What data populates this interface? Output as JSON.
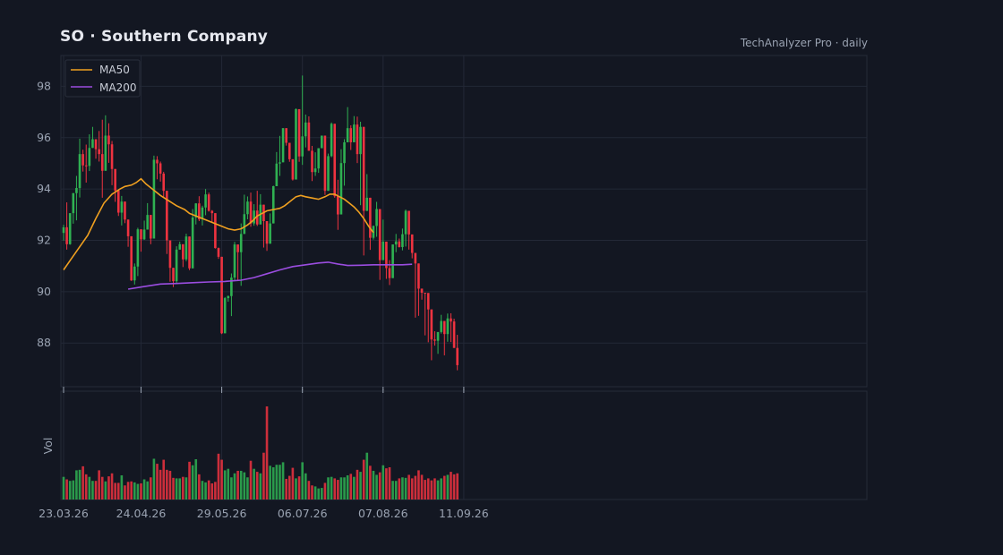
{
  "header": {
    "title": "SO  ·  Southern Company",
    "source": "TechAnalyzer Pro · daily"
  },
  "colors": {
    "background": "#131722",
    "up": "#2fb152",
    "down": "#ee3340",
    "ma50": "#f0a020",
    "ma200": "#9b4de0",
    "grid": "#232836",
    "axis_text": "#9aa3b2"
  },
  "chart_data": {
    "type": "candlestick",
    "interval": "daily",
    "ylim": [
      86.3,
      99.2
    ],
    "yticks": [
      88,
      90,
      92,
      94,
      96,
      98
    ],
    "ylabel_volume": "Vol",
    "x_tick_labels": [
      {
        "label": "23.03.26",
        "index": 0
      },
      {
        "label": "24.04.26",
        "index": 24
      },
      {
        "label": "29.05.26",
        "index": 49
      },
      {
        "label": "06.07.26",
        "index": 74
      },
      {
        "label": "07.08.26",
        "index": 99
      },
      {
        "label": "11.09.26",
        "index": 124
      }
    ],
    "legend": [
      {
        "name": "MA50",
        "color": "#f0a020"
      },
      {
        "name": "MA200",
        "color": "#9b4de0"
      }
    ],
    "ma50": [
      [
        0,
        90.85
      ],
      [
        5,
        91.3
      ],
      [
        10,
        91.75
      ],
      [
        15,
        92.2
      ],
      [
        20,
        92.85
      ],
      [
        25,
        93.45
      ],
      [
        30,
        93.8
      ],
      [
        35,
        94.0
      ],
      [
        38,
        94.1
      ],
      [
        42,
        94.15
      ],
      [
        45,
        94.25
      ],
      [
        48,
        94.4
      ],
      [
        51,
        94.2
      ],
      [
        55,
        94.0
      ],
      [
        60,
        93.75
      ],
      [
        65,
        93.55
      ],
      [
        70,
        93.35
      ],
      [
        75,
        93.2
      ],
      [
        78,
        93.05
      ],
      [
        82,
        92.95
      ],
      [
        86,
        92.85
      ],
      [
        90,
        92.75
      ],
      [
        94,
        92.65
      ],
      [
        98,
        92.55
      ],
      [
        102,
        92.45
      ],
      [
        106,
        92.4
      ],
      [
        110,
        92.45
      ],
      [
        114,
        92.6
      ],
      [
        117,
        92.75
      ],
      [
        120,
        92.95
      ],
      [
        123,
        93.05
      ],
      [
        126,
        93.15
      ],
      [
        130,
        93.2
      ],
      [
        134,
        93.25
      ],
      [
        137,
        93.35
      ],
      [
        140,
        93.5
      ],
      [
        144,
        93.7
      ],
      [
        147,
        93.75
      ],
      [
        150,
        93.7
      ],
      [
        154,
        93.65
      ],
      [
        158,
        93.6
      ],
      [
        162,
        93.7
      ],
      [
        165,
        93.8
      ],
      [
        168,
        93.8
      ],
      [
        171,
        93.7
      ],
      [
        174,
        93.6
      ],
      [
        177,
        93.45
      ],
      [
        180,
        93.3
      ],
      [
        183,
        93.1
      ],
      [
        186,
        92.85
      ],
      [
        189,
        92.55
      ],
      [
        192,
        92.3
      ]
    ],
    "ma200": [
      [
        40,
        90.1
      ],
      [
        50,
        90.2
      ],
      [
        60,
        90.3
      ],
      [
        70,
        90.32
      ],
      [
        80,
        90.35
      ],
      [
        90,
        90.38
      ],
      [
        100,
        90.4
      ],
      [
        110,
        90.45
      ],
      [
        118,
        90.55
      ],
      [
        126,
        90.7
      ],
      [
        134,
        90.85
      ],
      [
        142,
        90.98
      ],
      [
        150,
        91.05
      ],
      [
        158,
        91.12
      ],
      [
        164,
        91.15
      ],
      [
        170,
        91.08
      ],
      [
        176,
        91.02
      ],
      [
        184,
        91.03
      ],
      [
        192,
        91.05
      ],
      [
        200,
        91.05
      ],
      [
        210,
        91.05
      ],
      [
        216,
        91.07
      ]
    ],
    "candles": [
      [
        92.29,
        92.51,
        92.61,
        91.99,
        0.45
      ],
      [
        92.51,
        91.85,
        93.48,
        91.64,
        0.4
      ],
      [
        91.85,
        93.06,
        93.06,
        91.83,
        0.37
      ],
      [
        93.06,
        93.84,
        93.84,
        92.65,
        0.38
      ],
      [
        93.84,
        94.04,
        94.51,
        92.78,
        0.58
      ],
      [
        94.04,
        95.36,
        95.96,
        93.67,
        0.59
      ],
      [
        95.36,
        94.92,
        95.53,
        94.68,
        0.66
      ],
      [
        94.92,
        94.9,
        95.73,
        94.25,
        0.5
      ],
      [
        94.9,
        95.6,
        96.13,
        94.7,
        0.45
      ],
      [
        95.6,
        95.94,
        96.42,
        95.68,
        0.37
      ],
      [
        95.94,
        95.55,
        95.79,
        95.18,
        0.37
      ],
      [
        95.55,
        95.36,
        96.26,
        95.07,
        0.58
      ],
      [
        95.36,
        94.71,
        96.7,
        93.66,
        0.45
      ],
      [
        94.71,
        96.08,
        96.87,
        95.16,
        0.36
      ],
      [
        96.08,
        95.74,
        96.56,
        95.02,
        0.46
      ],
      [
        95.74,
        94.78,
        95.87,
        94.15,
        0.52
      ],
      [
        94.78,
        93.94,
        94.46,
        93.5,
        0.33
      ],
      [
        93.94,
        93.08,
        93.53,
        92.95,
        0.33
      ],
      [
        93.08,
        93.51,
        93.73,
        92.58,
        0.48
      ],
      [
        93.51,
        92.81,
        93.46,
        92.67,
        0.28
      ],
      [
        92.81,
        92.16,
        92.7,
        91.75,
        0.35
      ],
      [
        92.16,
        90.44,
        92.16,
        90.42,
        0.36
      ],
      [
        90.44,
        90.98,
        91.1,
        90.28,
        0.34
      ],
      [
        90.98,
        92.43,
        92.49,
        90.61,
        0.31
      ],
      [
        92.43,
        92.04,
        92.39,
        91.56,
        0.32
      ],
      [
        92.04,
        92.42,
        92.77,
        92.02,
        0.4
      ],
      [
        92.42,
        92.99,
        93.45,
        92.81,
        0.36
      ],
      [
        92.99,
        92.07,
        92.97,
        91.85,
        0.44
      ],
      [
        92.07,
        95.14,
        95.3,
        93.66,
        0.81
      ],
      [
        95.14,
        95.0,
        95.28,
        94.38,
        0.71
      ],
      [
        95.0,
        94.6,
        95.07,
        94.29,
        0.59
      ],
      [
        94.6,
        93.93,
        94.67,
        93.66,
        0.79
      ],
      [
        93.93,
        92.0,
        92.35,
        91.47,
        0.59
      ],
      [
        92.0,
        90.93,
        92.0,
        90.39,
        0.57
      ],
      [
        90.93,
        90.41,
        90.93,
        90.18,
        0.43
      ],
      [
        90.41,
        91.64,
        91.77,
        90.33,
        0.42
      ],
      [
        91.64,
        91.85,
        91.95,
        91.68,
        0.42
      ],
      [
        91.85,
        91.26,
        91.76,
        90.96,
        0.45
      ],
      [
        91.26,
        92.15,
        92.26,
        91.19,
        0.44
      ],
      [
        92.15,
        90.91,
        92.02,
        90.84,
        0.75
      ],
      [
        90.91,
        92.89,
        93.22,
        91.37,
        0.68
      ],
      [
        92.89,
        93.44,
        93.45,
        92.62,
        0.8
      ],
      [
        93.44,
        92.82,
        93.72,
        92.75,
        0.5
      ],
      [
        92.82,
        93.28,
        93.35,
        92.58,
        0.37
      ],
      [
        93.28,
        93.79,
        94.0,
        92.98,
        0.34
      ],
      [
        93.79,
        93.15,
        93.86,
        93.12,
        0.38
      ],
      [
        93.15,
        93.06,
        93.18,
        92.72,
        0.32
      ],
      [
        93.06,
        91.7,
        92.89,
        91.68,
        0.35
      ],
      [
        91.7,
        91.36,
        91.72,
        91.28,
        0.91
      ],
      [
        91.36,
        88.38,
        90.38,
        88.35,
        0.79
      ],
      [
        88.38,
        89.75,
        89.79,
        88.56,
        0.58
      ],
      [
        89.75,
        89.83,
        89.85,
        89.61,
        0.61
      ],
      [
        89.83,
        90.55,
        90.71,
        89.05,
        0.44
      ],
      [
        90.55,
        91.84,
        91.94,
        90.45,
        0.52
      ],
      [
        91.84,
        91.54,
        91.59,
        90.45,
        0.57
      ],
      [
        91.54,
        92.25,
        92.66,
        90.23,
        0.57
      ],
      [
        92.25,
        93.02,
        93.78,
        92.32,
        0.54
      ],
      [
        93.02,
        93.51,
        93.71,
        92.82,
        0.44
      ],
      [
        93.51,
        92.66,
        93.86,
        92.53,
        0.77
      ],
      [
        92.66,
        93.16,
        93.41,
        92.57,
        0.61
      ],
      [
        93.16,
        92.62,
        93.93,
        92.56,
        0.55
      ],
      [
        92.62,
        93.39,
        93.8,
        93.06,
        0.52
      ],
      [
        93.39,
        92.75,
        92.94,
        91.72,
        0.93
      ],
      [
        92.75,
        91.87,
        92.34,
        91.59,
        1.85
      ],
      [
        91.87,
        92.66,
        93.05,
        92.18,
        0.67
      ],
      [
        92.66,
        94.11,
        94.13,
        93.09,
        0.64
      ],
      [
        94.11,
        94.99,
        95.44,
        94.21,
        0.69
      ],
      [
        94.99,
        95.04,
        96.07,
        94.51,
        0.69
      ],
      [
        95.04,
        96.37,
        96.29,
        95.86,
        0.74
      ],
      [
        96.37,
        95.8,
        96.04,
        95.69,
        0.41
      ],
      [
        95.8,
        95.16,
        95.78,
        95.06,
        0.47
      ],
      [
        95.16,
        94.37,
        95.05,
        94.33,
        0.63
      ],
      [
        94.37,
        97.11,
        97.14,
        94.6,
        0.42
      ],
      [
        97.11,
        95.27,
        96.56,
        95.06,
        0.46
      ],
      [
        95.27,
        96.05,
        98.42,
        94.94,
        0.74
      ],
      [
        96.05,
        96.59,
        96.9,
        95.62,
        0.52
      ],
      [
        96.59,
        95.49,
        96.83,
        95.54,
        0.37
      ],
      [
        95.49,
        94.66,
        95.68,
        94.31,
        0.28
      ],
      [
        94.66,
        94.8,
        95.43,
        94.51,
        0.26
      ],
      [
        94.8,
        95.59,
        95.45,
        94.63,
        0.22
      ],
      [
        95.59,
        96.08,
        96.05,
        95.71,
        0.23
      ],
      [
        96.08,
        93.93,
        95.66,
        93.77,
        0.33
      ],
      [
        93.93,
        95.28,
        95.38,
        94.24,
        0.44
      ],
      [
        95.28,
        96.54,
        96.59,
        95.24,
        0.45
      ],
      [
        96.54,
        93.72,
        95.63,
        93.66,
        0.42
      ],
      [
        93.72,
        93.01,
        94.36,
        92.41,
        0.39
      ],
      [
        93.01,
        95.01,
        95.55,
        94.13,
        0.44
      ],
      [
        95.01,
        95.82,
        95.94,
        94.13,
        0.44
      ],
      [
        95.82,
        96.37,
        97.19,
        96.29,
        0.48
      ],
      [
        96.37,
        95.82,
        96.48,
        95.52,
        0.51
      ],
      [
        95.82,
        96.51,
        96.84,
        95.97,
        0.45
      ],
      [
        96.51,
        95.36,
        96.82,
        95.01,
        0.59
      ],
      [
        95.36,
        96.42,
        96.62,
        93.37,
        0.55
      ],
      [
        96.42,
        93.15,
        93.76,
        91.41,
        0.79
      ],
      [
        93.15,
        93.66,
        94.58,
        93.14,
        0.93
      ],
      [
        93.66,
        92.1,
        92.04,
        91.63,
        0.67
      ],
      [
        92.1,
        92.56,
        92.58,
        92.03,
        0.57
      ],
      [
        92.56,
        93.22,
        93.5,
        92.14,
        0.49
      ],
      [
        93.22,
        91.23,
        91.17,
        90.46,
        0.54
      ],
      [
        91.23,
        91.95,
        92.81,
        91.4,
        0.68
      ],
      [
        91.95,
        90.92,
        91.69,
        90.5,
        0.62
      ],
      [
        90.92,
        90.53,
        91.23,
        90.26,
        0.64
      ],
      [
        90.53,
        91.84,
        91.77,
        91.04,
        0.37
      ],
      [
        91.84,
        91.96,
        92.25,
        91.54,
        0.37
      ],
      [
        91.96,
        91.74,
        92.07,
        91.72,
        0.42
      ],
      [
        91.74,
        92.24,
        92.46,
        91.61,
        0.44
      ],
      [
        92.24,
        93.15,
        93.2,
        91.76,
        0.43
      ],
      [
        93.15,
        92.23,
        92.61,
        91.64,
        0.49
      ],
      [
        92.23,
        91.51,
        91.73,
        91.3,
        0.42
      ],
      [
        91.51,
        91.1,
        91.09,
        88.99,
        0.47
      ],
      [
        91.1,
        90.12,
        90.2,
        89.06,
        0.58
      ],
      [
        90.12,
        89.96,
        90.06,
        89.69,
        0.49
      ],
      [
        89.96,
        89.95,
        89.86,
        88.3,
        0.39
      ],
      [
        89.95,
        89.31,
        89.45,
        88.03,
        0.42
      ],
      [
        89.31,
        88.14,
        88.43,
        87.33,
        0.38
      ],
      [
        88.14,
        88.09,
        88.46,
        87.9,
        0.42
      ],
      [
        88.09,
        88.43,
        88.41,
        87.58,
        0.38
      ],
      [
        88.43,
        88.86,
        89.1,
        88.37,
        0.42
      ],
      [
        88.86,
        88.35,
        88.36,
        87.52,
        0.47
      ],
      [
        88.35,
        88.96,
        89.15,
        88.05,
        0.49
      ],
      [
        88.96,
        88.84,
        89.16,
        88.04,
        0.55
      ],
      [
        88.84,
        87.81,
        88.95,
        87.89,
        0.5
      ],
      [
        87.81,
        87.14,
        88.32,
        86.94,
        0.52
      ]
    ]
  }
}
